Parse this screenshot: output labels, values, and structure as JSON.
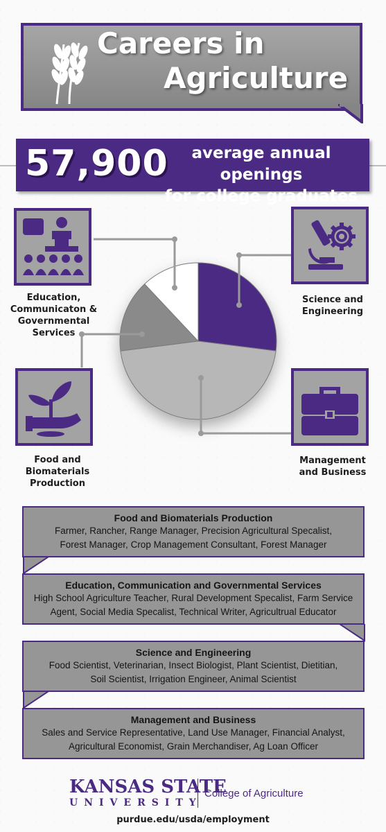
{
  "header": {
    "title_line1": "Careers in",
    "title_line2": "Agriculture"
  },
  "stat": {
    "number": "57,900",
    "text_line1": "average annual openings",
    "text_line2": "for college graduates"
  },
  "categories": {
    "education": {
      "label_line1": "Education,",
      "label_line2": "Communicaton &",
      "label_line3": "Governmental",
      "label_line4": "Services"
    },
    "science": {
      "label_line1": "Science and",
      "label_line2": "Engineering"
    },
    "food": {
      "label_line1": "Food and",
      "label_line2": "Biomaterials",
      "label_line3": "Production"
    },
    "management": {
      "label_line1": "Management",
      "label_line2": "and Business"
    }
  },
  "chart_data": {
    "type": "pie",
    "slices": [
      {
        "category": "Science and Engineering",
        "value": 27,
        "color": "#4b2a83"
      },
      {
        "category": "Management and Business",
        "value": 46,
        "color": "#b7b7b7"
      },
      {
        "category": "Food and Biomaterials Production",
        "value": 15,
        "color": "#8a8a8a"
      },
      {
        "category": "Education, Communicaton & Governmental Services",
        "value": 12,
        "color": "#ffffff"
      }
    ]
  },
  "bars": [
    {
      "title": "Food and Biomaterials Production",
      "line1": "Farmer, Rancher, Range Manager, Precision Agricultural Specalist,",
      "line2": "Forest Manager, Crop Management Consultant, Forest Manager"
    },
    {
      "title": "Education, Communication and Governmental Services",
      "line1": "High School Agriculture Teacher, Rural Development Specalist, Farm Service",
      "line2": "Agent, Social Media Specalist, Technical Writer, Agricultrual Educator"
    },
    {
      "title": "Science and Engineering",
      "line1": "Food Scientist, Veterinarian, Insect Biologist, Plant Scientist, Dietitian,",
      "line2": "Soil Scientist, Irrigation Engineer, Animal Scientist"
    },
    {
      "title": "Management and Business",
      "line1": "Sales and Service Representative, Land Use Manager, Financial Analyst,",
      "line2": "Agricultural Economist, Grain Merchandiser, Ag Loan Officer"
    }
  ],
  "footer": {
    "university_name": "KANSAS STATE",
    "university_sub": "UNIVERSITY",
    "college": "College of Agriculture",
    "url": "purdue.edu/usda/employment"
  },
  "colors": {
    "purple": "#4b2a83",
    "gray": "#969696"
  }
}
